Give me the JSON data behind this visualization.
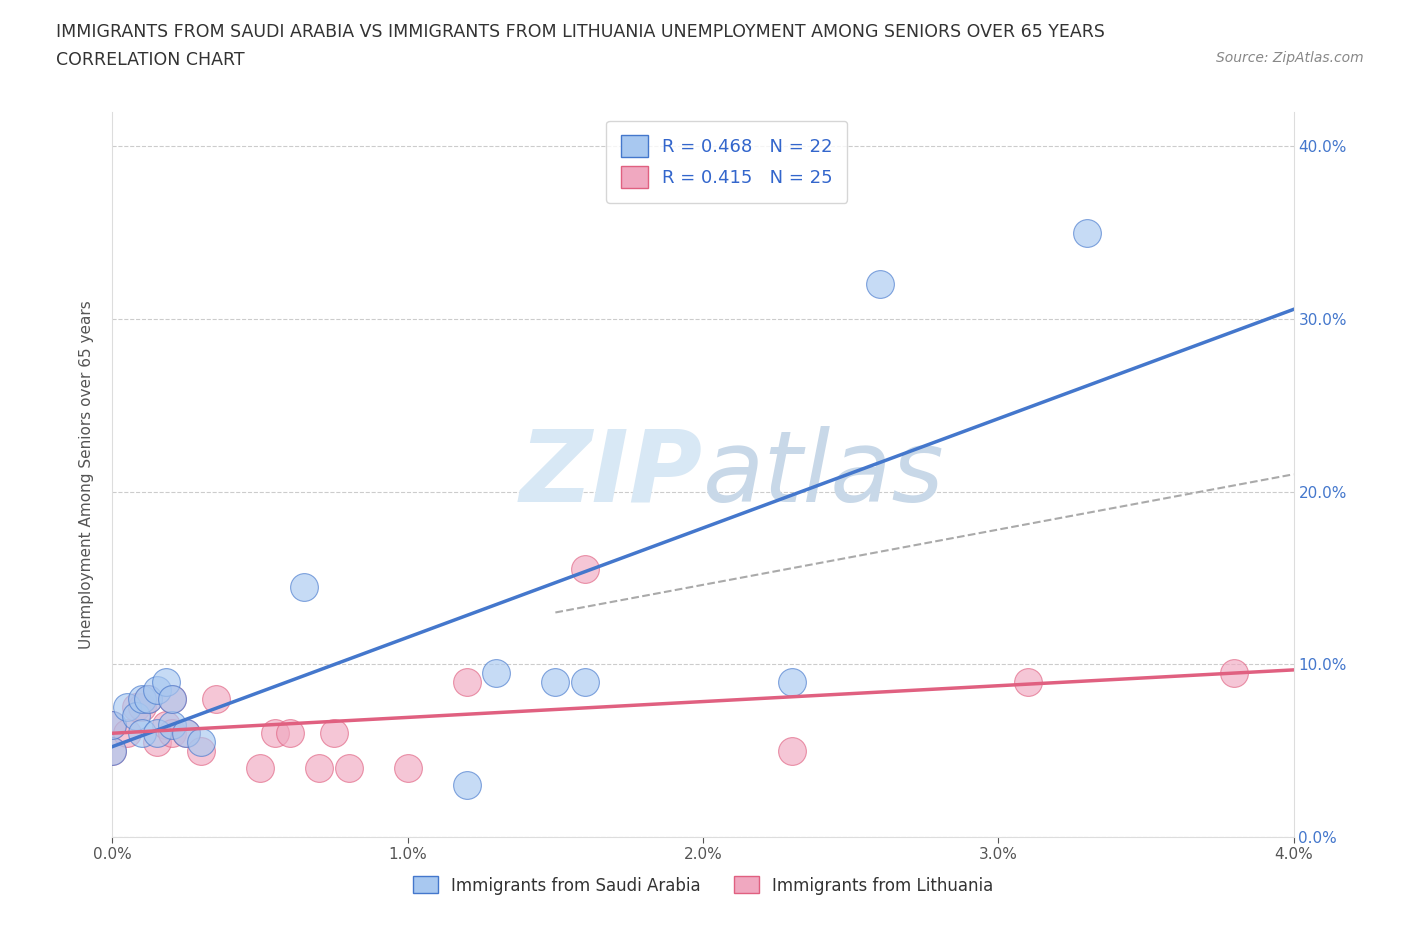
{
  "title_line1": "IMMIGRANTS FROM SAUDI ARABIA VS IMMIGRANTS FROM LITHUANIA UNEMPLOYMENT AMONG SENIORS OVER 65 YEARS",
  "title_line2": "CORRELATION CHART",
  "source": "Source: ZipAtlas.com",
  "ylabel": "Unemployment Among Seniors over 65 years",
  "xlim": [
    0.0,
    0.04
  ],
  "ylim": [
    0.0,
    0.42
  ],
  "xticks": [
    0.0,
    0.01,
    0.02,
    0.03,
    0.04
  ],
  "yticks": [
    0.0,
    0.1,
    0.2,
    0.3,
    0.4
  ],
  "xtick_labels": [
    "0.0%",
    "1.0%",
    "2.0%",
    "3.0%",
    "4.0%"
  ],
  "ytick_labels": [
    "0.0%",
    "10.0%",
    "20.0%",
    "30.0%",
    "40.0%"
  ],
  "saudi_R": 0.468,
  "saudi_N": 22,
  "lith_R": 0.415,
  "lith_N": 25,
  "saudi_color": "#a8c8f0",
  "lith_color": "#f0a8c0",
  "saudi_line_color": "#4477cc",
  "lith_line_color": "#e06080",
  "saudi_scatter_x": [
    0.0,
    0.0,
    0.0005,
    0.0008,
    0.001,
    0.001,
    0.0012,
    0.0015,
    0.0015,
    0.0018,
    0.002,
    0.002,
    0.0025,
    0.003,
    0.0065,
    0.012,
    0.013,
    0.015,
    0.016,
    0.023,
    0.026,
    0.033
  ],
  "saudi_scatter_y": [
    0.05,
    0.065,
    0.075,
    0.07,
    0.06,
    0.08,
    0.08,
    0.06,
    0.085,
    0.09,
    0.065,
    0.08,
    0.06,
    0.055,
    0.145,
    0.03,
    0.095,
    0.09,
    0.09,
    0.09,
    0.32,
    0.35
  ],
  "lith_scatter_x": [
    0.0,
    0.0,
    0.0005,
    0.0008,
    0.001,
    0.0012,
    0.0015,
    0.0018,
    0.002,
    0.002,
    0.0025,
    0.003,
    0.0035,
    0.005,
    0.0055,
    0.006,
    0.007,
    0.0075,
    0.008,
    0.01,
    0.012,
    0.016,
    0.023,
    0.031,
    0.038
  ],
  "lith_scatter_y": [
    0.05,
    0.065,
    0.06,
    0.075,
    0.075,
    0.08,
    0.055,
    0.065,
    0.06,
    0.08,
    0.06,
    0.05,
    0.08,
    0.04,
    0.06,
    0.06,
    0.04,
    0.06,
    0.04,
    0.04,
    0.09,
    0.155,
    0.05,
    0.09,
    0.095
  ],
  "dash_line_x": [
    0.015,
    0.04
  ],
  "dash_line_y": [
    0.13,
    0.21
  ],
  "background_color": "#ffffff",
  "grid_color": "#cccccc",
  "watermark_zip_color": "#d8e8f5",
  "watermark_atlas_color": "#c8d8e8"
}
